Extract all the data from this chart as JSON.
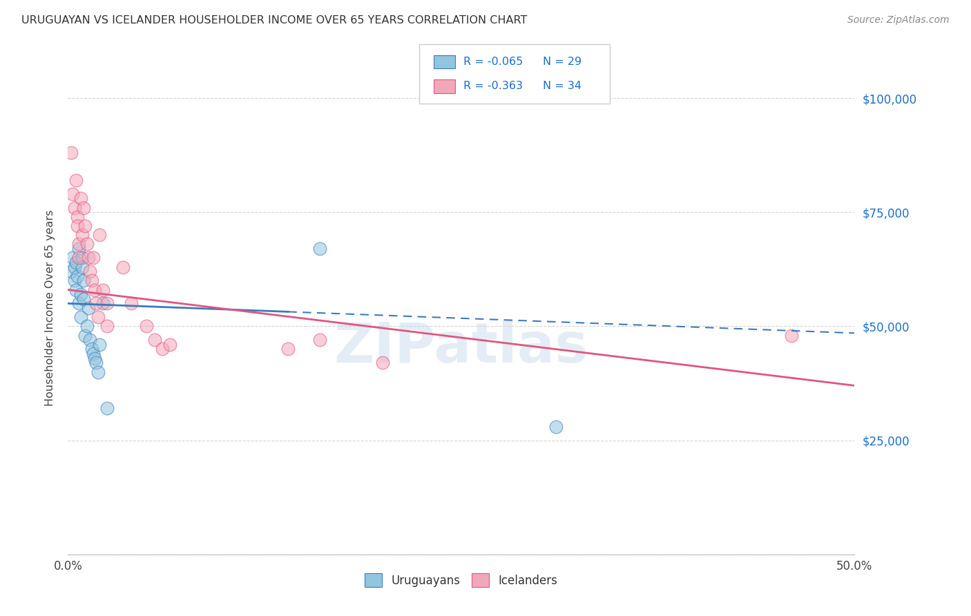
{
  "title": "URUGUAYAN VS ICELANDER HOUSEHOLDER INCOME OVER 65 YEARS CORRELATION CHART",
  "source": "Source: ZipAtlas.com",
  "ylabel": "Householder Income Over 65 years",
  "y_ticks": [
    0,
    25000,
    50000,
    75000,
    100000
  ],
  "y_tick_labels": [
    "",
    "$25,000",
    "$50,000",
    "$75,000",
    "$100,000"
  ],
  "xlim": [
    0.0,
    0.5
  ],
  "ylim": [
    0,
    108000
  ],
  "legend_labels": [
    "Uruguayans",
    "Icelanders"
  ],
  "legend_r_blue": "-0.065",
  "legend_n_blue": "29",
  "legend_r_pink": "-0.363",
  "legend_n_pink": "34",
  "color_blue": "#92c5de",
  "color_pink": "#f4a7b9",
  "color_line_blue": "#3a7bbf",
  "color_line_pink": "#e05580",
  "watermark": "ZIPatlas",
  "blue_line_x0": 0.0,
  "blue_line_y0": 55000,
  "blue_line_x1": 0.5,
  "blue_line_y1": 48500,
  "blue_line_solid_end": 0.14,
  "pink_line_x0": 0.0,
  "pink_line_y0": 58000,
  "pink_line_x1": 0.5,
  "pink_line_y1": 37000,
  "uruguayan_x": [
    0.002,
    0.003,
    0.004,
    0.004,
    0.005,
    0.005,
    0.006,
    0.007,
    0.007,
    0.008,
    0.008,
    0.009,
    0.009,
    0.01,
    0.01,
    0.011,
    0.012,
    0.013,
    0.014,
    0.015,
    0.016,
    0.017,
    0.018,
    0.019,
    0.02,
    0.022,
    0.025,
    0.16,
    0.31
  ],
  "uruguayan_y": [
    62000,
    65000,
    63000,
    60000,
    64000,
    58000,
    61000,
    67000,
    55000,
    57000,
    52000,
    65000,
    63000,
    60000,
    56000,
    48000,
    50000,
    54000,
    47000,
    45000,
    44000,
    43000,
    42000,
    40000,
    46000,
    55000,
    32000,
    67000,
    28000
  ],
  "icelander_x": [
    0.002,
    0.003,
    0.004,
    0.005,
    0.006,
    0.006,
    0.007,
    0.007,
    0.008,
    0.009,
    0.01,
    0.011,
    0.012,
    0.013,
    0.014,
    0.015,
    0.016,
    0.017,
    0.018,
    0.019,
    0.02,
    0.022,
    0.025,
    0.025,
    0.035,
    0.04,
    0.05,
    0.055,
    0.06,
    0.065,
    0.14,
    0.16,
    0.2,
    0.46
  ],
  "icelander_y": [
    88000,
    79000,
    76000,
    82000,
    74000,
    72000,
    68000,
    65000,
    78000,
    70000,
    76000,
    72000,
    68000,
    65000,
    62000,
    60000,
    65000,
    58000,
    55000,
    52000,
    70000,
    58000,
    55000,
    50000,
    63000,
    55000,
    50000,
    47000,
    45000,
    46000,
    45000,
    47000,
    42000,
    48000
  ]
}
